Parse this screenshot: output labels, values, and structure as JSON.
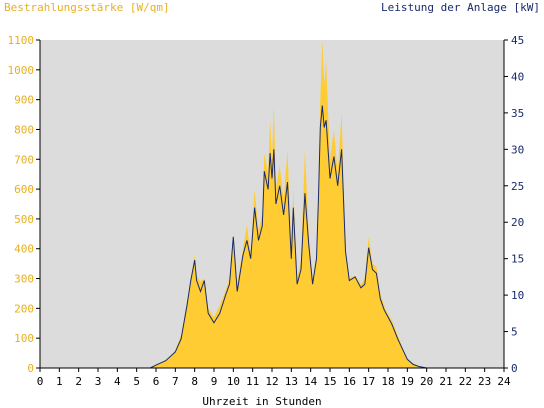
{
  "chart_data": {
    "type": "area",
    "title_left": "Bestrahlungsstärke [W/qm]",
    "title_right": "Leistung der Anlage [kW]",
    "xlabel": "Uhrzeit in Stunden",
    "x_ticks": [
      "0",
      "1",
      "2",
      "3",
      "4",
      "5",
      "6",
      "7",
      "8",
      "9",
      "10",
      "11",
      "12",
      "13",
      "14",
      "15",
      "16",
      "17",
      "18",
      "19",
      "20",
      "21",
      "22",
      "23",
      "24"
    ],
    "xlim": [
      0,
      24
    ],
    "ylim_left": [
      0,
      1100
    ],
    "y_ticks_left": [
      "0",
      "100",
      "200",
      "300",
      "400",
      "500",
      "600",
      "700",
      "800",
      "900",
      "1000",
      "1100"
    ],
    "ylim_right": [
      0,
      45
    ],
    "y_ticks_right": [
      "0",
      "5",
      "10",
      "15",
      "20",
      "25",
      "30",
      "35",
      "40",
      "45"
    ],
    "grid": false,
    "colors": {
      "irradiance": "#ffcc33",
      "power": "#1a2a6c",
      "plot_bg": "#dcdcdc",
      "left_axis_text": "#e8b020",
      "right_axis_text": "#1a2a6c"
    },
    "series": [
      {
        "axis": "left",
        "x": [
          0,
          5.7,
          6.0,
          6.5,
          7.0,
          7.3,
          7.6,
          7.8,
          8.0,
          8.1,
          8.3,
          8.5,
          8.7,
          9.0,
          9.3,
          9.6,
          9.8,
          10.0,
          10.2,
          10.5,
          10.7,
          10.9,
          11.1,
          11.3,
          11.5,
          11.6,
          11.8,
          11.9,
          12.0,
          12.1,
          12.2,
          12.4,
          12.6,
          12.8,
          13.0,
          13.1,
          13.3,
          13.5,
          13.7,
          13.9,
          14.1,
          14.3,
          14.4,
          14.5,
          14.6,
          14.7,
          14.8,
          15.0,
          15.2,
          15.4,
          15.6,
          15.8,
          16.0,
          16.3,
          16.6,
          16.8,
          17.0,
          17.2,
          17.4,
          17.6,
          17.8,
          18.0,
          18.2,
          18.5,
          18.8,
          19.0,
          19.3,
          19.6,
          20.0,
          24
        ],
        "values": [
          0,
          0,
          10,
          25,
          60,
          110,
          220,
          300,
          380,
          310,
          290,
          300,
          200,
          170,
          210,
          260,
          300,
          450,
          280,
          400,
          480,
          380,
          600,
          460,
          520,
          720,
          650,
          830,
          700,
          880,
          600,
          680,
          560,
          730,
          400,
          600,
          300,
          360,
          730,
          450,
          300,
          380,
          600,
          900,
          1100,
          950,
          1030,
          700,
          800,
          650,
          860,
          400,
          300,
          310,
          280,
          300,
          440,
          350,
          340,
          250,
          210,
          180,
          160,
          110,
          60,
          30,
          15,
          5,
          0,
          0
        ]
      },
      {
        "axis": "right",
        "x": [
          0,
          5.7,
          6.0,
          6.5,
          7.0,
          7.3,
          7.6,
          7.8,
          8.0,
          8.1,
          8.3,
          8.5,
          8.7,
          9.0,
          9.3,
          9.6,
          9.8,
          10.0,
          10.2,
          10.5,
          10.7,
          10.9,
          11.1,
          11.3,
          11.5,
          11.6,
          11.8,
          11.9,
          12.0,
          12.1,
          12.2,
          12.4,
          12.6,
          12.8,
          13.0,
          13.1,
          13.3,
          13.5,
          13.7,
          13.9,
          14.1,
          14.3,
          14.4,
          14.5,
          14.6,
          14.7,
          14.8,
          15.0,
          15.2,
          15.4,
          15.6,
          15.8,
          16.0,
          16.3,
          16.6,
          16.8,
          17.0,
          17.2,
          17.4,
          17.6,
          17.8,
          18.0,
          18.2,
          18.5,
          18.8,
          19.0,
          19.3,
          19.6,
          20.0,
          24
        ],
        "values": [
          0,
          0,
          0.4,
          1,
          2.2,
          4,
          8.5,
          12,
          14.8,
          12,
          10.5,
          12,
          7.5,
          6.2,
          7.5,
          10,
          11.5,
          18,
          10.5,
          15.5,
          17.5,
          15,
          22,
          17.5,
          19.5,
          27,
          24.5,
          29.5,
          26,
          30,
          22.5,
          25,
          21,
          25.5,
          15,
          22,
          11.5,
          13.5,
          24,
          17,
          11.5,
          15,
          23,
          33,
          36,
          33,
          34,
          26,
          29,
          25,
          30,
          16,
          12,
          12.5,
          11,
          11.5,
          16.5,
          13.5,
          13,
          9.5,
          8,
          7,
          6,
          4,
          2.3,
          1.2,
          0.5,
          0.2,
          0,
          0
        ]
      }
    ]
  }
}
